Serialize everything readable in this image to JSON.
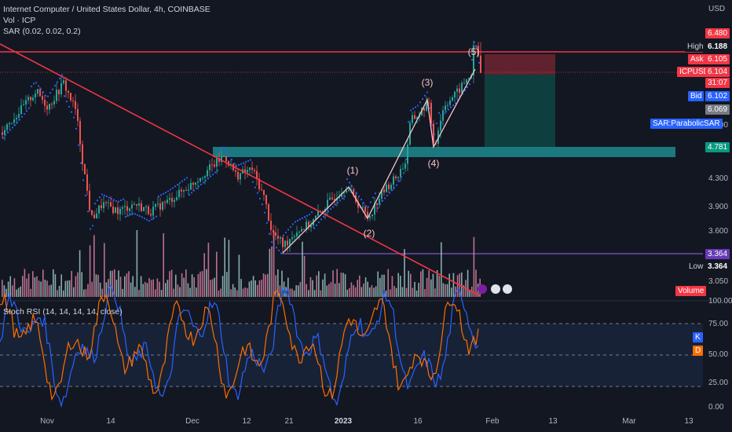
{
  "header": {
    "title": "Internet Computer / United States Dollar, 4h, COINBASE",
    "indicator_vol": "Vol · ICP",
    "indicator_sar": "SAR (0.02, 0.02, 0.2)",
    "currency": "USD"
  },
  "price_axis": {
    "ticks": [
      "6.480",
      "5.100",
      "4.300",
      "3.900",
      "3.600",
      "3.050"
    ],
    "high_label": "High",
    "high_value": "6.188",
    "ask_label": "Ask",
    "ask_value": "6.105",
    "symbol_label": "ICPUSD",
    "symbol_value": "6.104",
    "countdown": "31:07",
    "bid_label": "Bid",
    "bid_value": "6.102",
    "gray_value": "6.069",
    "sar_label": "SAR:ParabolicSAR",
    "green_value": "4.781",
    "support_value": "3.364",
    "low_label": "Low",
    "low_value": "3.364",
    "volume_label": "Volume"
  },
  "rsi_panel": {
    "title": "Stoch RSI (14, 14, 14, 14, close)",
    "ticks": [
      "100.00",
      "75.00",
      "50.00",
      "25.00",
      "0.00"
    ],
    "k_label": "K",
    "d_label": "D"
  },
  "time_axis": [
    "Nov",
    "14",
    "Dec",
    "12",
    "21",
    "2023",
    "16",
    "Feb",
    "13",
    "Mar",
    "13"
  ],
  "wave_labels": [
    "(1)",
    "(2)",
    "(3)",
    "(4)",
    "(5)"
  ],
  "colors": {
    "background": "#131722",
    "bull": "#26a69a",
    "bear": "#ef5350",
    "trendline": "#f23645",
    "sar": "#2962ff",
    "wave": "#f7c6c8",
    "zone": "#1e8a8f",
    "k_line": "#2962ff",
    "d_line": "#ff6d00"
  },
  "chart_data": {
    "type": "candlestick",
    "symbol": "ICPUSD",
    "timeframe": "4h",
    "elliott_waves": [
      {
        "label": "(1)",
        "price": 4.19
      },
      {
        "label": "(2)",
        "price": 3.77
      },
      {
        "label": "(3)",
        "price": 5.55
      },
      {
        "label": "(4)",
        "price": 4.77
      },
      {
        "label": "(5)",
        "price": 6.19
      }
    ],
    "levels": {
      "high": 6.188,
      "ask": 6.105,
      "last": 6.104,
      "bid": 6.102,
      "support": 3.364,
      "zone": 4.781
    },
    "stoch_rsi": {
      "k_last": 68,
      "d_last": 64,
      "bands": [
        80,
        50,
        20
      ]
    }
  }
}
